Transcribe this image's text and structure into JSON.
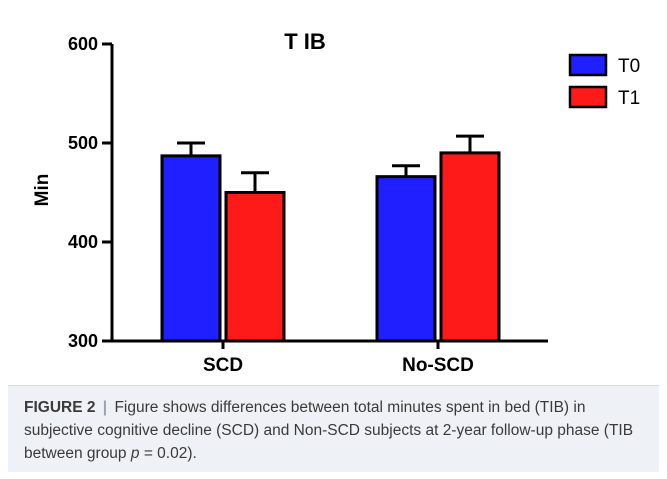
{
  "chart_data": {
    "type": "bar",
    "title": "T IB",
    "xlabel": "",
    "ylabel": "Min",
    "ylim": [
      300,
      600
    ],
    "yticks": [
      300,
      400,
      500,
      600
    ],
    "categories": [
      "SCD",
      "No-SCD"
    ],
    "series": [
      {
        "name": "T0",
        "color": "#1f1fff",
        "values": [
          487,
          466
        ],
        "errors": [
          13,
          11
        ]
      },
      {
        "name": "T1",
        "color": "#ff1a1a",
        "values": [
          450,
          490
        ],
        "errors": [
          20,
          17
        ]
      }
    ],
    "legend": "top-right",
    "grid": false
  },
  "caption": {
    "label": "FIGURE 2",
    "separator": "|",
    "text_before_p": "Figure shows differences between total minutes spent in bed (TIB) in subjective cognitive decline (SCD) and Non-SCD subjects at 2-year follow-up phase (TIB between group",
    "p_symbol": "p",
    "text_after_p": "= 0.02)."
  }
}
